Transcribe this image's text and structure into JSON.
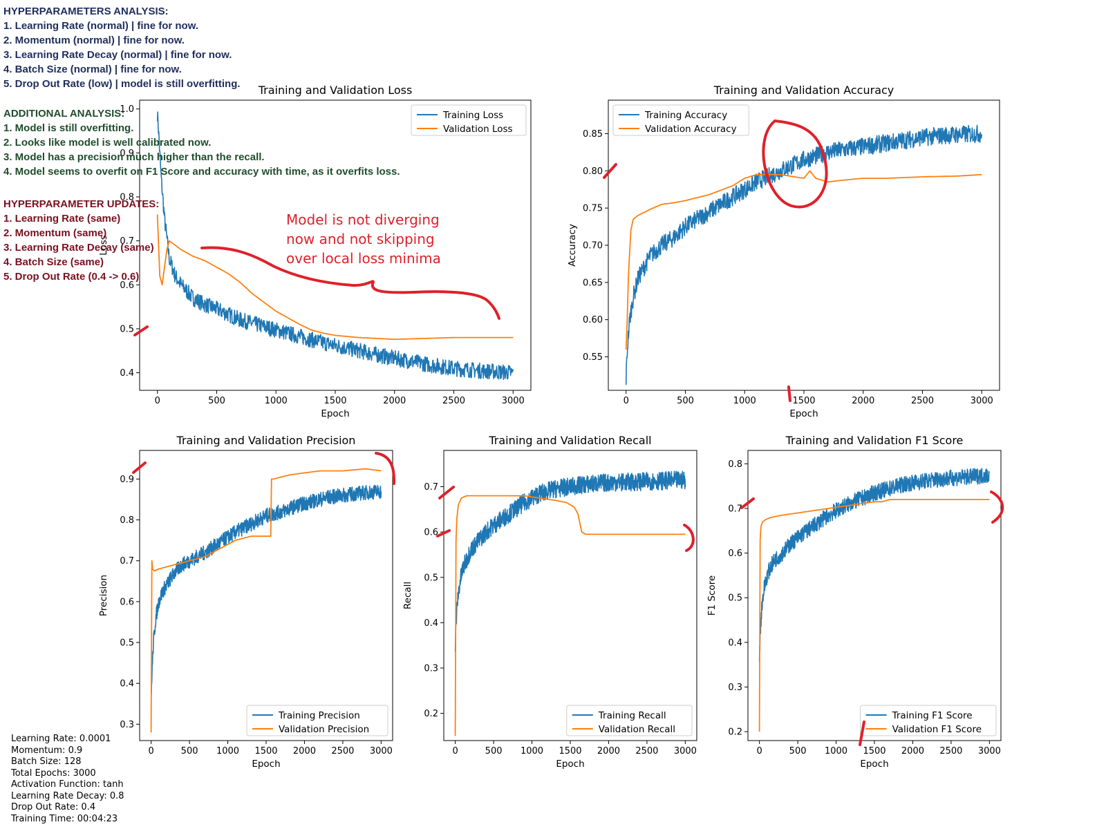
{
  "notes": {
    "hyperparameters": [
      "HYPERPARAMETERS ANALYSIS:",
      "1. Learning Rate (normal) | fine for now.",
      "2. Momentum (normal) | fine for now.",
      "3. Learning Rate Decay (normal) | fine for now.",
      "4. Batch Size (normal) | fine for now.",
      "5. Drop Out Rate (low) | model is still overfitting."
    ],
    "additional": [
      "ADDITIONAL ANALYSIS:",
      "1. Model is still overfitting.",
      "2. Looks like model is well calibrated now.",
      "3. Model has a precision much higher than the recall.",
      "4. Model seems to overfit on F1 Score and accuracy with time, as it overfits loss."
    ],
    "updates": [
      "HYPERPARAMETER UPDATES:",
      "1. Learning Rate (same)",
      "2. Momentum (same)",
      "3. Learning Rate Decay (same)",
      "4. Batch Size (same)",
      "5. Drop Out Rate (0.4 -> 0.6)"
    ]
  },
  "config": [
    "Learning Rate: 0.0001",
    "Momentum: 0.9",
    "Batch Size: 128",
    "Total Epochs: 3000",
    "Activation Function: tanh",
    "Learning Rate Decay: 0.8",
    "Drop Out Rate: 0.4",
    "Training Time: 00:04:23"
  ],
  "annotation": [
    "Model is not diverging",
    "now and not skipping",
    "over local loss minima"
  ],
  "colors": {
    "training": "#1f77b4",
    "validation": "#ff7f0e",
    "annotation": "#e0202a"
  },
  "chart_data": [
    {
      "type": "line",
      "title": "Training and Validation Loss",
      "xlabel": "Epoch",
      "ylabel": "Loss",
      "xlim": [
        -150,
        3150
      ],
      "ylim": [
        0.36,
        1.02
      ],
      "xticks": [
        0,
        500,
        1000,
        1500,
        2000,
        2500,
        3000
      ],
      "yticks": [
        0.4,
        0.5,
        0.6,
        0.7,
        0.8,
        0.9,
        1.0
      ],
      "ytick_labels": [
        "0.4",
        "0.5",
        "0.6",
        "0.7",
        "0.8",
        "0.9",
        "1.0"
      ],
      "legend_position": "top-right",
      "series": [
        {
          "name": "Training Loss",
          "x": [
            0,
            10,
            30,
            60,
            100,
            150,
            200,
            300,
            400,
            500,
            700,
            900,
            1100,
            1300,
            1500,
            1700,
            1900,
            2100,
            2300,
            2500,
            2700,
            3000
          ],
          "y": [
            0.99,
            0.95,
            0.85,
            0.75,
            0.66,
            0.62,
            0.6,
            0.57,
            0.555,
            0.545,
            0.52,
            0.505,
            0.49,
            0.475,
            0.462,
            0.45,
            0.438,
            0.428,
            0.418,
            0.41,
            0.405,
            0.4
          ],
          "noise": 0.018
        },
        {
          "name": "Validation Loss",
          "x": [
            0,
            20,
            40,
            60,
            80,
            100,
            200,
            300,
            400,
            500,
            600,
            700,
            800,
            900,
            1000,
            1100,
            1200,
            1300,
            1400,
            1500,
            1700,
            2000,
            2500,
            3000
          ],
          "y": [
            0.76,
            0.62,
            0.6,
            0.64,
            0.68,
            0.7,
            0.68,
            0.665,
            0.655,
            0.64,
            0.625,
            0.605,
            0.58,
            0.56,
            0.54,
            0.525,
            0.51,
            0.497,
            0.49,
            0.485,
            0.48,
            0.476,
            0.48,
            0.48
          ],
          "noise": 0
        }
      ]
    },
    {
      "type": "line",
      "title": "Training and Validation Accuracy",
      "xlabel": "Epoch",
      "ylabel": "Accuracy",
      "xlim": [
        -150,
        3150
      ],
      "ylim": [
        0.505,
        0.895
      ],
      "xticks": [
        0,
        500,
        1000,
        1500,
        2000,
        2500,
        3000
      ],
      "yticks": [
        0.55,
        0.6,
        0.65,
        0.7,
        0.75,
        0.8,
        0.85
      ],
      "ytick_labels": [
        "0.55",
        "0.60",
        "0.65",
        "0.70",
        "0.75",
        "0.80",
        "0.85"
      ],
      "legend_position": "top-left",
      "series": [
        {
          "name": "Training Accuracy",
          "x": [
            0,
            10,
            30,
            60,
            100,
            150,
            200,
            300,
            400,
            500,
            700,
            900,
            1100,
            1300,
            1500,
            1700,
            1900,
            2100,
            2300,
            2500,
            2700,
            3000
          ],
          "y": [
            0.52,
            0.56,
            0.6,
            0.63,
            0.655,
            0.67,
            0.685,
            0.7,
            0.71,
            0.725,
            0.745,
            0.765,
            0.785,
            0.8,
            0.815,
            0.825,
            0.83,
            0.835,
            0.84,
            0.845,
            0.848,
            0.85
          ],
          "noise": 0.012
        },
        {
          "name": "Validation Accuracy",
          "x": [
            0,
            10,
            20,
            40,
            60,
            100,
            200,
            300,
            400,
            500,
            700,
            900,
            1000,
            1100,
            1300,
            1500,
            1550,
            1600,
            1700,
            1800,
            2000,
            2200,
            2500,
            2800,
            3000
          ],
          "y": [
            0.56,
            0.6,
            0.66,
            0.72,
            0.735,
            0.74,
            0.748,
            0.755,
            0.757,
            0.76,
            0.768,
            0.78,
            0.79,
            0.795,
            0.795,
            0.79,
            0.8,
            0.79,
            0.785,
            0.787,
            0.79,
            0.79,
            0.792,
            0.793,
            0.795
          ],
          "noise": 0
        }
      ]
    },
    {
      "type": "line",
      "title": "Training and Validation Precision",
      "xlabel": "Epoch",
      "ylabel": "Precision",
      "xlim": [
        -150,
        3150
      ],
      "ylim": [
        0.26,
        0.97
      ],
      "xticks": [
        0,
        500,
        1000,
        1500,
        2000,
        2500,
        3000
      ],
      "yticks": [
        0.3,
        0.4,
        0.5,
        0.6,
        0.7,
        0.8,
        0.9
      ],
      "ytick_labels": [
        "0.3",
        "0.4",
        "0.5",
        "0.6",
        "0.7",
        "0.8",
        "0.9"
      ],
      "legend_position": "bottom-right",
      "series": [
        {
          "name": "Training Precision",
          "x": [
            0,
            10,
            30,
            60,
            100,
            150,
            200,
            300,
            400,
            500,
            700,
            900,
            1100,
            1300,
            1500,
            1700,
            1900,
            2100,
            2300,
            2500,
            2700,
            3000
          ],
          "y": [
            0.36,
            0.42,
            0.5,
            0.56,
            0.6,
            0.625,
            0.64,
            0.67,
            0.69,
            0.7,
            0.72,
            0.745,
            0.77,
            0.79,
            0.81,
            0.82,
            0.835,
            0.845,
            0.855,
            0.86,
            0.865,
            0.87
          ],
          "noise": 0.018
        },
        {
          "name": "Validation Precision",
          "x": [
            0,
            5,
            10,
            20,
            40,
            100,
            300,
            500,
            700,
            900,
            1100,
            1300,
            1500,
            1560,
            1570,
            1600,
            1800,
            2000,
            2200,
            2500,
            2800,
            3000
          ],
          "y": [
            0.28,
            0.6,
            0.7,
            0.68,
            0.675,
            0.68,
            0.69,
            0.7,
            0.71,
            0.73,
            0.75,
            0.76,
            0.76,
            0.76,
            0.9,
            0.9,
            0.91,
            0.915,
            0.92,
            0.92,
            0.925,
            0.92
          ],
          "noise": 0
        }
      ]
    },
    {
      "type": "line",
      "title": "Training and Validation Recall",
      "xlabel": "Epoch",
      "ylabel": "Recall",
      "xlim": [
        -150,
        3150
      ],
      "ylim": [
        0.14,
        0.78
      ],
      "xticks": [
        0,
        500,
        1000,
        1500,
        2000,
        2500,
        3000
      ],
      "yticks": [
        0.2,
        0.3,
        0.4,
        0.5,
        0.6,
        0.7
      ],
      "ytick_labels": [
        "0.2",
        "0.3",
        "0.4",
        "0.5",
        "0.6",
        "0.7"
      ],
      "legend_position": "bottom-right",
      "series": [
        {
          "name": "Training Recall",
          "x": [
            0,
            10,
            30,
            60,
            100,
            150,
            200,
            300,
            400,
            500,
            700,
            900,
            1100,
            1300,
            1500,
            1700,
            1900,
            2100,
            2300,
            2500,
            2700,
            3000
          ],
          "y": [
            0.34,
            0.4,
            0.45,
            0.49,
            0.52,
            0.54,
            0.56,
            0.58,
            0.6,
            0.615,
            0.64,
            0.665,
            0.685,
            0.695,
            0.7,
            0.705,
            0.708,
            0.71,
            0.71,
            0.712,
            0.713,
            0.715
          ],
          "noise": 0.02
        },
        {
          "name": "Validation Recall",
          "x": [
            0,
            5,
            10,
            20,
            40,
            80,
            150,
            300,
            500,
            700,
            900,
            1100,
            1300,
            1450,
            1550,
            1600,
            1650,
            1700,
            2000,
            2500,
            3000
          ],
          "y": [
            0.15,
            0.4,
            0.58,
            0.63,
            0.66,
            0.675,
            0.68,
            0.68,
            0.68,
            0.68,
            0.68,
            0.675,
            0.67,
            0.665,
            0.655,
            0.64,
            0.6,
            0.595,
            0.595,
            0.595,
            0.595
          ],
          "noise": 0
        }
      ]
    },
    {
      "type": "line",
      "title": "Training and Validation F1 Score",
      "xlabel": "Epoch",
      "ylabel": "F1 Score",
      "xlim": [
        -150,
        3150
      ],
      "ylim": [
        0.18,
        0.83
      ],
      "xticks": [
        0,
        500,
        1000,
        1500,
        2000,
        2500,
        3000
      ],
      "yticks": [
        0.2,
        0.3,
        0.4,
        0.5,
        0.6,
        0.7,
        0.8
      ],
      "ytick_labels": [
        "0.2",
        "0.3",
        "0.4",
        "0.5",
        "0.6",
        "0.7",
        "0.8"
      ],
      "legend_position": "bottom-right",
      "series": [
        {
          "name": "Training F1 Score",
          "x": [
            0,
            10,
            30,
            60,
            100,
            150,
            200,
            300,
            400,
            500,
            700,
            900,
            1100,
            1300,
            1500,
            1700,
            1900,
            2100,
            2300,
            2500,
            2700,
            3000
          ],
          "y": [
            0.36,
            0.42,
            0.48,
            0.52,
            0.55,
            0.57,
            0.585,
            0.6,
            0.62,
            0.635,
            0.66,
            0.685,
            0.705,
            0.72,
            0.735,
            0.745,
            0.755,
            0.76,
            0.765,
            0.768,
            0.77,
            0.775
          ],
          "noise": 0.018
        },
        {
          "name": "Validation F1 Score",
          "x": [
            0,
            5,
            10,
            20,
            40,
            80,
            150,
            300,
            500,
            700,
            900,
            1100,
            1300,
            1500,
            1600,
            1700,
            2000,
            2500,
            3000
          ],
          "y": [
            0.2,
            0.5,
            0.63,
            0.66,
            0.67,
            0.675,
            0.68,
            0.685,
            0.69,
            0.695,
            0.7,
            0.705,
            0.71,
            0.715,
            0.715,
            0.72,
            0.72,
            0.72,
            0.72
          ],
          "noise": 0
        }
      ]
    }
  ]
}
